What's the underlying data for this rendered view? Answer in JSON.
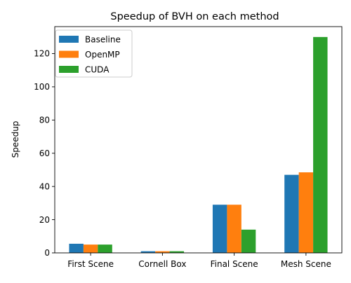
{
  "chart_data": {
    "type": "bar",
    "title": "Speedup of BVH on each method",
    "xlabel": "",
    "ylabel": "Speedup",
    "categories": [
      "First Scene",
      "Cornell Box",
      "Final Scene",
      "Mesh Scene"
    ],
    "series": [
      {
        "name": "Baseline",
        "color": "#1f77b4",
        "values": [
          5.5,
          1.0,
          29.0,
          47.0
        ]
      },
      {
        "name": "OpenMP",
        "color": "#ff7f0e",
        "values": [
          5.0,
          1.0,
          29.0,
          48.5
        ]
      },
      {
        "name": "CUDA",
        "color": "#2ca02c",
        "values": [
          5.0,
          1.0,
          14.0,
          130.0
        ]
      }
    ],
    "ylim": [
      0,
      136.25
    ],
    "yticks": [
      "0",
      "20",
      "40",
      "60",
      "80",
      "100",
      "120"
    ],
    "grid": false,
    "legend_position": "upper-left"
  }
}
